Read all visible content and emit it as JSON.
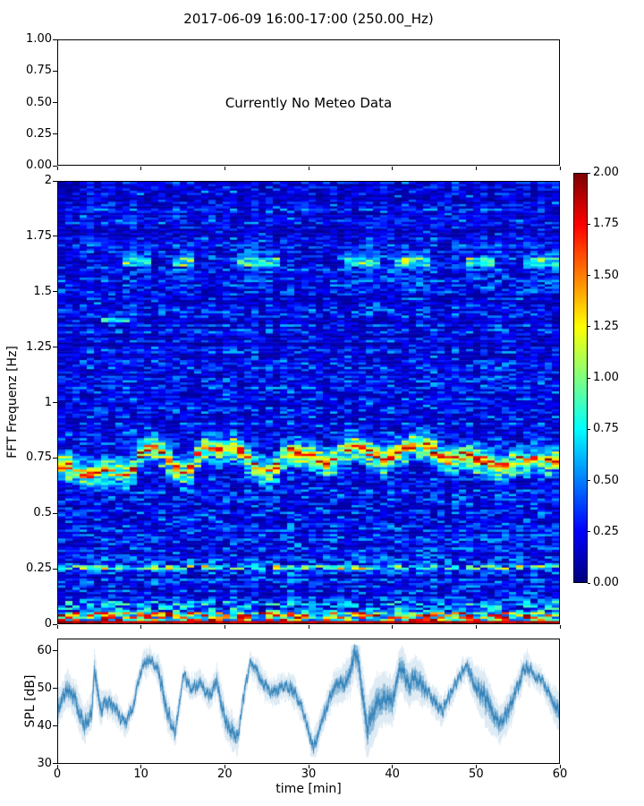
{
  "figure": {
    "title": "2017-06-09 16:00-17:00 (250.00_Hz)",
    "background_color": "#ffffff",
    "axis_color": "#000000",
    "text_color": "#000000"
  },
  "meteo_panel": {
    "message": "Currently No Meteo Data",
    "yticks": [
      "1.00",
      "0.75",
      "0.50",
      "0.25",
      "0.00"
    ],
    "ylim": [
      0,
      1
    ]
  },
  "spectrogram": {
    "ylabel": "FFT Frequenz [Hz]",
    "yticks": [
      "2",
      "1.75",
      "1.5",
      "1.25",
      "1",
      "0.75",
      "0.5",
      "0.25",
      "0"
    ],
    "ylim": [
      0,
      2
    ],
    "xlim": [
      0,
      60
    ],
    "colormap": "jet"
  },
  "colorbar": {
    "ticks": [
      "2.00",
      "1.75",
      "1.50",
      "1.25",
      "1.00",
      "0.75",
      "0.50",
      "0.25",
      "0.00"
    ],
    "vmin": 0,
    "vmax": 2,
    "colormap": "jet"
  },
  "spl_panel": {
    "ylabel": "SPL [dB]",
    "xlabel": "time [min]",
    "yticks": [
      "60",
      "50",
      "40",
      "30"
    ],
    "xticks": [
      "0",
      "10",
      "20",
      "30",
      "40",
      "50",
      "60"
    ],
    "ylim": [
      30,
      60
    ],
    "xlim": [
      0,
      60
    ],
    "line_color": "#1f77b4"
  },
  "chart_data": [
    {
      "type": "heatmap",
      "panel": "spectrogram",
      "title": "2017-06-09 16:00-17:00 (250.00_Hz)",
      "xlabel": "time [min]",
      "ylabel": "FFT Frequenz [Hz]",
      "xlim": [
        0,
        60
      ],
      "ylim": [
        0,
        2
      ],
      "clim": [
        0,
        2
      ],
      "colormap": "jet",
      "legend_position": "colorbar-right",
      "background_noise_level": [
        0.05,
        0.55
      ],
      "main_band": {
        "name": "microseism-band",
        "halfwidth_hz": 0.055,
        "level": [
          0.9,
          2.0
        ],
        "freq_track_hz": [
          0.7,
          0.72,
          0.7,
          0.68,
          0.67,
          0.68,
          0.7,
          0.69,
          0.67,
          0.7,
          0.78,
          0.8,
          0.79,
          0.76,
          0.7,
          0.68,
          0.7,
          0.78,
          0.8,
          0.78,
          0.79,
          0.8,
          0.78,
          0.72,
          0.7,
          0.68,
          0.7,
          0.76,
          0.78,
          0.77,
          0.76,
          0.75,
          0.72,
          0.74,
          0.78,
          0.8,
          0.8,
          0.78,
          0.76,
          0.74,
          0.76,
          0.78,
          0.8,
          0.81,
          0.8,
          0.78,
          0.75,
          0.73,
          0.75,
          0.77,
          0.75,
          0.74,
          0.72,
          0.7,
          0.72,
          0.74,
          0.73,
          0.75,
          0.74,
          0.73,
          0.74
        ]
      },
      "bands": [
        {
          "name": "dc-surf-band",
          "freq_hz": 0.02,
          "halfwidth_hz": 0.04,
          "level": [
            1.0,
            2.0
          ],
          "time_intervals_min": [
            [
              0,
              60
            ]
          ]
        },
        {
          "name": "band-0.25hz",
          "freq_hz": 0.255,
          "halfwidth_hz": 0.02,
          "level": [
            0.5,
            1.45
          ],
          "time_intervals_min": [
            [
              0,
              60
            ]
          ]
        },
        {
          "name": "band-1.37hz",
          "freq_hz": 1.372,
          "halfwidth_hz": 0.012,
          "level": [
            0.45,
            1.0
          ],
          "time_intervals_min": [
            [
              4.9,
              8.4
            ]
          ]
        },
        {
          "name": "band-1.5hz",
          "freq_hz": 1.505,
          "halfwidth_hz": 0.015,
          "level": [
            0.35,
            0.65
          ],
          "time_intervals_min": [
            [
              0,
              1.6
            ],
            [
              25,
              28
            ],
            [
              41,
              47
            ],
            [
              55,
              58
            ]
          ]
        },
        {
          "name": "band-1.64hz",
          "freq_hz": 1.64,
          "halfwidth_hz": 0.03,
          "level": [
            0.5,
            1.35
          ],
          "time_intervals_min": [
            [
              7.5,
              11.2
            ],
            [
              13.4,
              16.4
            ],
            [
              21.5,
              26.2
            ],
            [
              34.3,
              38.6
            ],
            [
              40.1,
              44.4
            ],
            [
              48.5,
              52.2
            ],
            [
              55.6,
              60
            ]
          ]
        }
      ]
    },
    {
      "type": "line",
      "panel": "spl",
      "xlabel": "time [min]",
      "ylabel": "SPL [dB]",
      "xlim": [
        0,
        60
      ],
      "ylim": [
        30,
        60
      ],
      "color": "#1f77b4",
      "noise_halfwidth_db": [
        1.2,
        4.2
      ],
      "x_min": [
        0,
        1,
        2,
        3,
        4,
        4.3,
        5,
        6,
        7,
        8,
        9,
        10,
        11,
        12,
        13,
        14,
        15,
        16,
        17,
        18,
        19,
        20,
        21,
        21.5,
        22,
        23,
        24,
        25,
        26,
        27,
        28,
        29,
        30,
        30.5,
        31,
        32,
        33,
        34,
        35,
        35.5,
        36,
        37,
        38,
        39,
        40,
        41,
        42,
        43,
        44,
        45,
        46,
        47,
        48,
        49,
        50,
        51,
        52,
        53,
        54,
        55,
        56,
        57,
        58,
        59,
        60
      ],
      "y_db": [
        45,
        50,
        47,
        40,
        44,
        55,
        45,
        46,
        44,
        40,
        46,
        56,
        58,
        55,
        44,
        38,
        53,
        50,
        52,
        48,
        52,
        41,
        38,
        36,
        45,
        57,
        54,
        50,
        49,
        51,
        50,
        46,
        39,
        34,
        37,
        44,
        50,
        51,
        54,
        61,
        57,
        39,
        45,
        48,
        46,
        56,
        51,
        53,
        50,
        47,
        44,
        48,
        53,
        56,
        51,
        48,
        44,
        40,
        44,
        50,
        56,
        54,
        52,
        48,
        44
      ]
    }
  ]
}
